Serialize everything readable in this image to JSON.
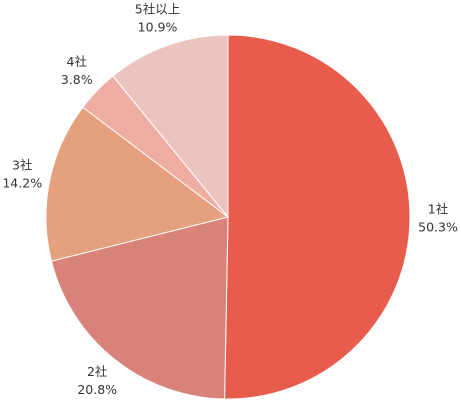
{
  "chart_data": {
    "type": "pie",
    "categories": [
      "1社",
      "2社",
      "3社",
      "4社",
      "5社以上"
    ],
    "values": [
      50.3,
      20.8,
      14.2,
      3.8,
      10.9
    ],
    "value_labels": [
      "50.3%",
      "20.8%",
      "14.2%",
      "3.8%",
      "10.9%"
    ],
    "colors": [
      "#e85c4b",
      "#d9827a",
      "#e5a07e",
      "#eeaca3",
      "#ecc4bf"
    ]
  }
}
